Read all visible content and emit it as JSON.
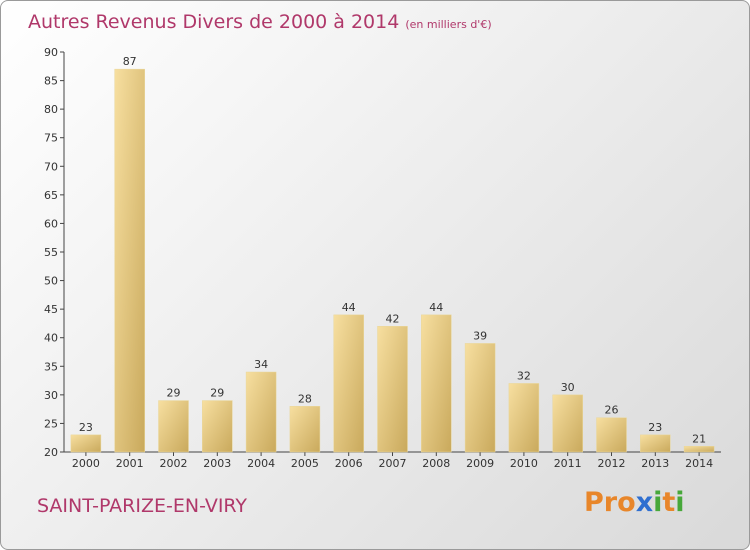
{
  "header": {
    "title": "Autres Revenus Divers de 2000 à 2014",
    "unit": "(en milliers d'€)"
  },
  "footer": {
    "commune": "SAINT-PARIZE-EN-VIRY",
    "logo": [
      "P",
      "r",
      "o",
      "x",
      "i",
      "t",
      "i"
    ]
  },
  "colors": {
    "title": "#b0386a",
    "bar_light": "#f7dfa0",
    "bar_dark": "#c9a95c",
    "logo": [
      "#e8862a",
      "#e8862a",
      "#e8862a",
      "#2f6fd0",
      "#47a83a",
      "#e8862a",
      "#47a83a"
    ]
  },
  "chart_data": {
    "type": "bar",
    "categories": [
      "2000",
      "2001",
      "2002",
      "2003",
      "2004",
      "2005",
      "2006",
      "2007",
      "2008",
      "2009",
      "2010",
      "2011",
      "2012",
      "2013",
      "2014"
    ],
    "values": [
      23,
      87,
      29,
      29,
      34,
      28,
      44,
      42,
      44,
      39,
      32,
      30,
      26,
      23,
      21
    ],
    "title": "Autres Revenus Divers de 2000 à 2014",
    "ylim": [
      20,
      90
    ],
    "yticks": [
      20,
      25,
      30,
      35,
      40,
      45,
      50,
      55,
      60,
      65,
      70,
      75,
      80,
      85,
      90
    ],
    "grid": false,
    "data_labels": true
  }
}
